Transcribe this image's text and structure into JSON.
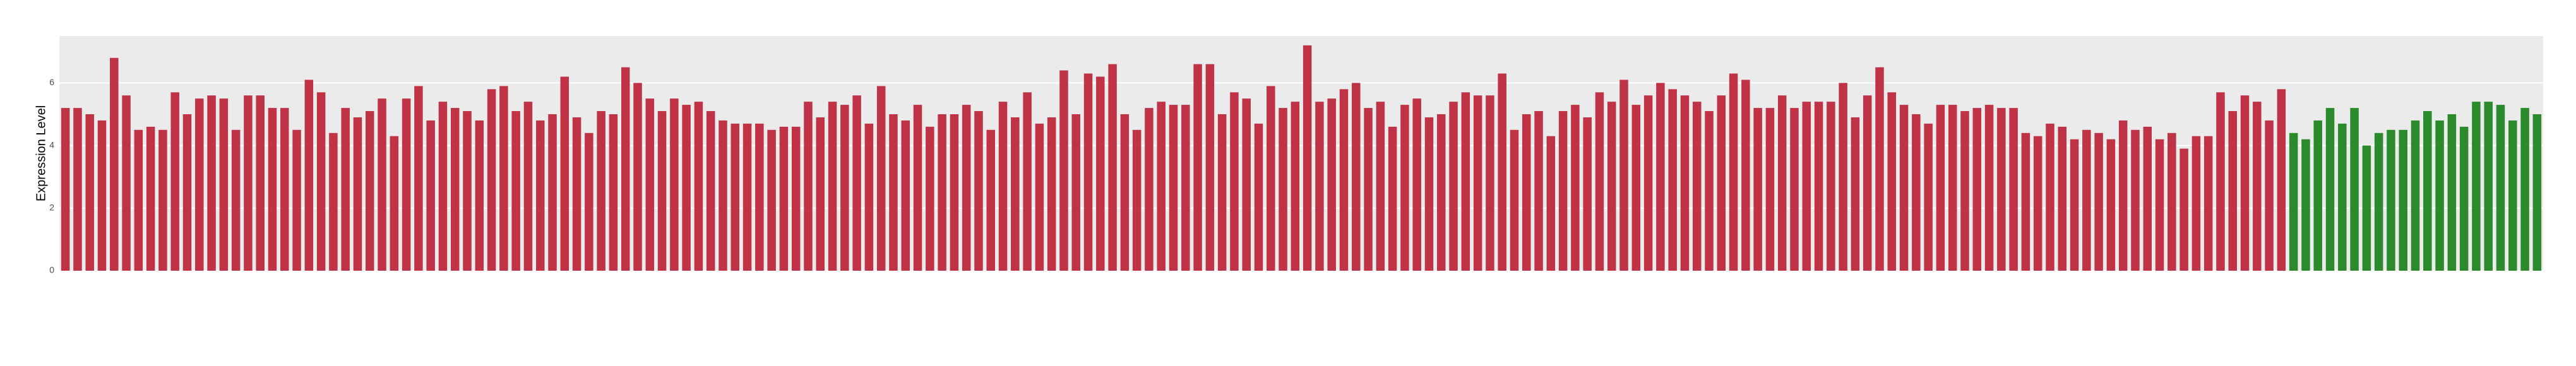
{
  "chart_data": {
    "type": "bar",
    "y_label": "Expression Level",
    "ylim": [
      0,
      7.5
    ],
    "yticks": [
      0,
      2,
      4,
      6
    ],
    "grid": true,
    "values": [
      5.2,
      5.2,
      5.0,
      4.8,
      6.8,
      5.6,
      4.5,
      4.6,
      4.5,
      5.7,
      5.0,
      5.5,
      5.6,
      5.5,
      4.5,
      5.6,
      5.6,
      5.2,
      5.2,
      4.5,
      6.1,
      5.7,
      4.4,
      5.2,
      4.9,
      5.1,
      5.5,
      4.3,
      5.5,
      5.9,
      4.8,
      5.4,
      5.2,
      5.1,
      4.8,
      5.8,
      5.9,
      5.1,
      5.4,
      4.8,
      5.0,
      6.2,
      4.9,
      4.4,
      5.1,
      5.0,
      6.5,
      6.0,
      5.5,
      5.1,
      5.5,
      5.3,
      5.4,
      5.1,
      4.8,
      4.7,
      4.7,
      4.7,
      4.5,
      4.6,
      4.6,
      5.4,
      4.9,
      5.4,
      5.3,
      5.6,
      4.7,
      5.9,
      5.0,
      4.8,
      5.3,
      4.6,
      5.0,
      5.0,
      5.3,
      5.1,
      4.5,
      5.4,
      4.9,
      5.7,
      4.7,
      4.9,
      6.4,
      5.0,
      6.3,
      6.2,
      6.6,
      5.0,
      4.5,
      5.2,
      5.4,
      5.3,
      5.3,
      6.6,
      6.6,
      5.0,
      5.7,
      5.5,
      4.7,
      5.9,
      5.2,
      5.4,
      7.2,
      5.4,
      5.5,
      5.8,
      6.0,
      5.2,
      5.4,
      4.6,
      5.3,
      5.5,
      4.9,
      5.0,
      5.4,
      5.7,
      5.6,
      5.6,
      6.3,
      4.5,
      5.0,
      5.1,
      4.3,
      5.1,
      5.3,
      4.9,
      5.7,
      5.4,
      6.1,
      5.3,
      5.6,
      6.0,
      5.8,
      5.6,
      5.4,
      5.1,
      5.6,
      6.3,
      6.1,
      5.2,
      5.2,
      5.6,
      5.2,
      5.4,
      5.4,
      5.4,
      6.0,
      4.9,
      5.6,
      6.5,
      5.7,
      5.3,
      5.0,
      4.7,
      5.3,
      5.3,
      5.1,
      5.2,
      5.3,
      5.2,
      5.2,
      4.4,
      4.3,
      4.7,
      4.6,
      4.2,
      4.5,
      4.4,
      4.2,
      4.8,
      4.5,
      4.6,
      4.2,
      4.4,
      3.9,
      4.3,
      4.3,
      5.7,
      5.1,
      5.6,
      5.4,
      4.8,
      5.8,
      4.4,
      4.2,
      4.8,
      5.2,
      4.7,
      5.2,
      4.0,
      4.4,
      4.5,
      4.5,
      4.8,
      5.1,
      4.8,
      5.0,
      4.6,
      5.4,
      5.4,
      5.3,
      4.8,
      5.2,
      5.0
    ],
    "colors": [
      "#c03347",
      "#c03347",
      "#c03347",
      "#c03347",
      "#c03347",
      "#c03347",
      "#c03347",
      "#c03347",
      "#c03347",
      "#c03347",
      "#c03347",
      "#c03347",
      "#c03347",
      "#c03347",
      "#c03347",
      "#c03347",
      "#c03347",
      "#c03347",
      "#c03347",
      "#c03347",
      "#c03347",
      "#c03347",
      "#c03347",
      "#c03347",
      "#c03347",
      "#c03347",
      "#c03347",
      "#c03347",
      "#c03347",
      "#c03347",
      "#c03347",
      "#c03347",
      "#c03347",
      "#c03347",
      "#c03347",
      "#c03347",
      "#c03347",
      "#c03347",
      "#c03347",
      "#c03347",
      "#c03347",
      "#c03347",
      "#c03347",
      "#c03347",
      "#c03347",
      "#c03347",
      "#c03347",
      "#c03347",
      "#c03347",
      "#c03347",
      "#c03347",
      "#c03347",
      "#c03347",
      "#c03347",
      "#c03347",
      "#c03347",
      "#c03347",
      "#c03347",
      "#c03347",
      "#c03347",
      "#c03347",
      "#c03347",
      "#c03347",
      "#c03347",
      "#c03347",
      "#c03347",
      "#c03347",
      "#c03347",
      "#c03347",
      "#c03347",
      "#c03347",
      "#c03347",
      "#c03347",
      "#c03347",
      "#c03347",
      "#c03347",
      "#c03347",
      "#c03347",
      "#c03347",
      "#c03347",
      "#c03347",
      "#c03347",
      "#c03347",
      "#c03347",
      "#c03347",
      "#c03347",
      "#c03347",
      "#c03347",
      "#c03347",
      "#c03347",
      "#c03347",
      "#c03347",
      "#c03347",
      "#c03347",
      "#c03347",
      "#c03347",
      "#c03347",
      "#c03347",
      "#c03347",
      "#c03347",
      "#c03347",
      "#c03347",
      "#c03347",
      "#c03347",
      "#c03347",
      "#c03347",
      "#c03347",
      "#c03347",
      "#c03347",
      "#c03347",
      "#c03347",
      "#c03347",
      "#c03347",
      "#c03347",
      "#c03347",
      "#c03347",
      "#c03347",
      "#c03347",
      "#c03347",
      "#c03347",
      "#c03347",
      "#c03347",
      "#c03347",
      "#c03347",
      "#c03347",
      "#c03347",
      "#c03347",
      "#c03347",
      "#c03347",
      "#c03347",
      "#c03347",
      "#c03347",
      "#c03347",
      "#c03347",
      "#c03347",
      "#c03347",
      "#c03347",
      "#c03347",
      "#c03347",
      "#c03347",
      "#c03347",
      "#c03347",
      "#c03347",
      "#c03347",
      "#c03347",
      "#c03347",
      "#c03347",
      "#c03347",
      "#c03347",
      "#c03347",
      "#c03347",
      "#c03347",
      "#c03347",
      "#c03347",
      "#c03347",
      "#c03347",
      "#c03347",
      "#c03347",
      "#c03347",
      "#c03347",
      "#c03347",
      "#c03347",
      "#c03347",
      "#c03347",
      "#c03347",
      "#c03347",
      "#c03347",
      "#c03347",
      "#c03347",
      "#c03347",
      "#c03347",
      "#c03347",
      "#c03347",
      "#c03347",
      "#c03347",
      "#c03347",
      "#c03347",
      "#c03347",
      "#c03347",
      "#c03347",
      "#c03347",
      "#c03347",
      "#c03347",
      "#2b8a2b",
      "#2b8a2b",
      "#2b8a2b",
      "#2b8a2b",
      "#2b8a2b",
      "#2b8a2b",
      "#2b8a2b",
      "#2b8a2b",
      "#2b8a2b",
      "#2b8a2b",
      "#2b8a2b",
      "#2b8a2b",
      "#2b8a2b",
      "#2b8a2b",
      "#2b8a2b",
      "#2b8a2b",
      "#2b8a2b",
      "#2b8a2b",
      "#2b8a2b",
      "#2b8a2b",
      "#2b8a2b"
    ]
  }
}
